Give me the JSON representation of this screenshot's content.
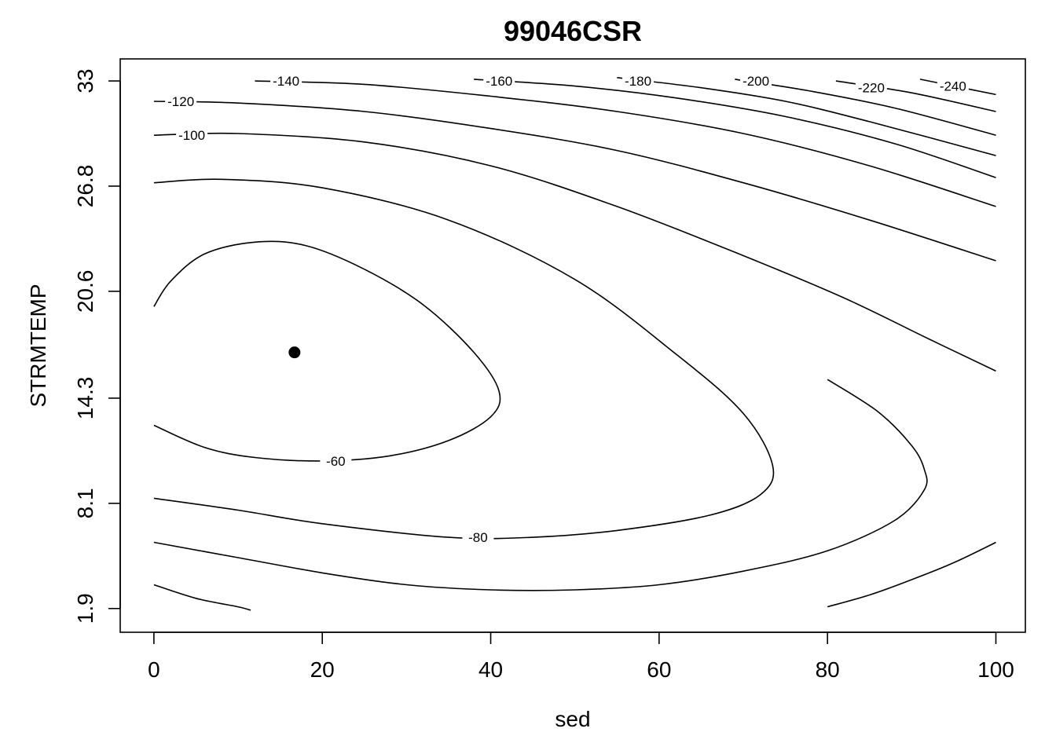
{
  "chart_data": {
    "type": "contour",
    "title": "99046CSR",
    "xlabel": "sed",
    "ylabel": "STRMTEMP",
    "xlim": [
      -4,
      103.5
    ],
    "ylim": [
      0.5,
      34.3
    ],
    "x_ticks": [
      0,
      20,
      40,
      60,
      80,
      100
    ],
    "x_tick_labels": [
      "0",
      "20",
      "40",
      "60",
      "80",
      "100"
    ],
    "y_ticks": [
      1.9,
      8.1,
      14.3,
      20.6,
      26.8,
      33
    ],
    "y_tick_labels": [
      "1.9",
      "8.1",
      "14.3",
      "20.6",
      "26.8",
      "33"
    ],
    "max_point": {
      "x": 16.7,
      "y": 17.0
    },
    "contours": [
      {
        "level": -60,
        "label": "-60",
        "closed": false,
        "points": [
          [
            0,
            19.7
          ],
          [
            2,
            21.2
          ],
          [
            6,
            22.8
          ],
          [
            12,
            23.5
          ],
          [
            18,
            23.3
          ],
          [
            25,
            21.9
          ],
          [
            32,
            19.8
          ],
          [
            38,
            17.0
          ],
          [
            41,
            14.7
          ],
          [
            40,
            13.2
          ],
          [
            35,
            11.8
          ],
          [
            28,
            10.9
          ],
          [
            20,
            10.6
          ],
          [
            12,
            10.8
          ],
          [
            6,
            11.4
          ],
          [
            0,
            12.7
          ]
        ],
        "label_at": {
          "x": 21.6,
          "y": 10.6
        }
      },
      {
        "level": -80,
        "label": "-80",
        "closed": false,
        "points": [
          [
            0,
            27.0
          ],
          [
            8,
            27.2
          ],
          [
            20,
            26.7
          ],
          [
            35,
            24.8
          ],
          [
            50,
            21.3
          ],
          [
            62,
            16.9
          ],
          [
            70,
            13.4
          ],
          [
            73.5,
            10.3
          ],
          [
            72,
            8.6
          ],
          [
            66,
            7.4
          ],
          [
            55,
            6.5
          ],
          [
            45,
            6.1
          ],
          [
            35,
            6.1
          ],
          [
            20,
            6.9
          ],
          [
            10,
            7.7
          ],
          [
            0,
            8.4
          ]
        ],
        "label_at": {
          "x": 38.5,
          "y": 6.1
        }
      },
      {
        "level": -100,
        "label": "-100",
        "closed": false,
        "points": [
          [
            0,
            29.8
          ],
          [
            10,
            29.9
          ],
          [
            25,
            29.4
          ],
          [
            40,
            28.0
          ],
          [
            55,
            25.6
          ],
          [
            70,
            22.7
          ],
          [
            82,
            20.2
          ],
          [
            92,
            17.8
          ],
          [
            100,
            15.9
          ]
        ],
        "bottom": [
          [
            0,
            5.8
          ],
          [
            10,
            4.9
          ],
          [
            20,
            4.0
          ],
          [
            30,
            3.3
          ],
          [
            40,
            3.0
          ],
          [
            50,
            3.0
          ],
          [
            60,
            3.3
          ],
          [
            70,
            4.1
          ],
          [
            80,
            5.3
          ],
          [
            88,
            7.1
          ],
          [
            91.5,
            8.9
          ],
          [
            91.5,
            10.1
          ],
          [
            90,
            11.5
          ],
          [
            86,
            13.5
          ],
          [
            80,
            15.4
          ]
        ],
        "label_at": {
          "x": 4.5,
          "y": 29.8
        }
      },
      {
        "level": -120,
        "label": "-120",
        "closed": false,
        "points": [
          [
            0,
            31.8
          ],
          [
            10,
            31.7
          ],
          [
            25,
            31.2
          ],
          [
            40,
            30.2
          ],
          [
            55,
            28.9
          ],
          [
            70,
            27.0
          ],
          [
            85,
            24.8
          ],
          [
            100,
            22.4
          ]
        ],
        "bottom": [
          [
            0,
            3.3
          ],
          [
            5,
            2.5
          ],
          [
            10,
            2.0
          ],
          [
            11.5,
            1.8
          ]
        ],
        "right": [
          [
            80,
            2.0
          ],
          [
            85,
            2.7
          ],
          [
            90,
            3.6
          ],
          [
            95,
            4.6
          ],
          [
            100,
            5.8
          ]
        ],
        "label_at": {
          "x": 3.2,
          "y": 31.8
        }
      },
      {
        "level": -140,
        "label": "-140",
        "closed": false,
        "points": [
          [
            12,
            33.0
          ],
          [
            25,
            32.8
          ],
          [
            40,
            32.1
          ],
          [
            55,
            31.2
          ],
          [
            70,
            29.9
          ],
          [
            85,
            28.0
          ],
          [
            100,
            25.6
          ]
        ],
        "label_at": {
          "x": 15.7,
          "y": 33.0
        }
      },
      {
        "level": -160,
        "label": "-160",
        "closed": false,
        "points": [
          [
            38,
            33.1
          ],
          [
            50,
            32.7
          ],
          [
            62,
            32.0
          ],
          [
            75,
            30.9
          ],
          [
            88,
            29.3
          ],
          [
            100,
            27.3
          ]
        ],
        "label_at": {
          "x": 41.0,
          "y": 33.0
        }
      },
      {
        "level": -180,
        "label": "-180",
        "closed": false,
        "points": [
          [
            55,
            33.2
          ],
          [
            65,
            32.6
          ],
          [
            75,
            31.8
          ],
          [
            85,
            30.6
          ],
          [
            100,
            28.6
          ]
        ],
        "label_at": {
          "x": 57.5,
          "y": 33.0
        }
      },
      {
        "level": -200,
        "label": "-200",
        "closed": false,
        "points": [
          [
            69,
            33.1
          ],
          [
            78,
            32.4
          ],
          [
            88,
            31.4
          ],
          [
            100,
            29.8
          ]
        ],
        "label_at": {
          "x": 71.5,
          "y": 33.0
        }
      },
      {
        "level": -220,
        "label": "-220",
        "closed": false,
        "points": [
          [
            81,
            33.0
          ],
          [
            90,
            32.3
          ],
          [
            100,
            31.2
          ]
        ],
        "label_at": {
          "x": 85.2,
          "y": 32.6
        }
      },
      {
        "level": -240,
        "label": "-240",
        "closed": false,
        "points": [
          [
            91,
            33.1
          ],
          [
            96,
            32.6
          ],
          [
            100,
            32.2
          ]
        ],
        "label_at": {
          "x": 94.9,
          "y": 32.7
        }
      }
    ],
    "grid": false,
    "legend": "none"
  }
}
